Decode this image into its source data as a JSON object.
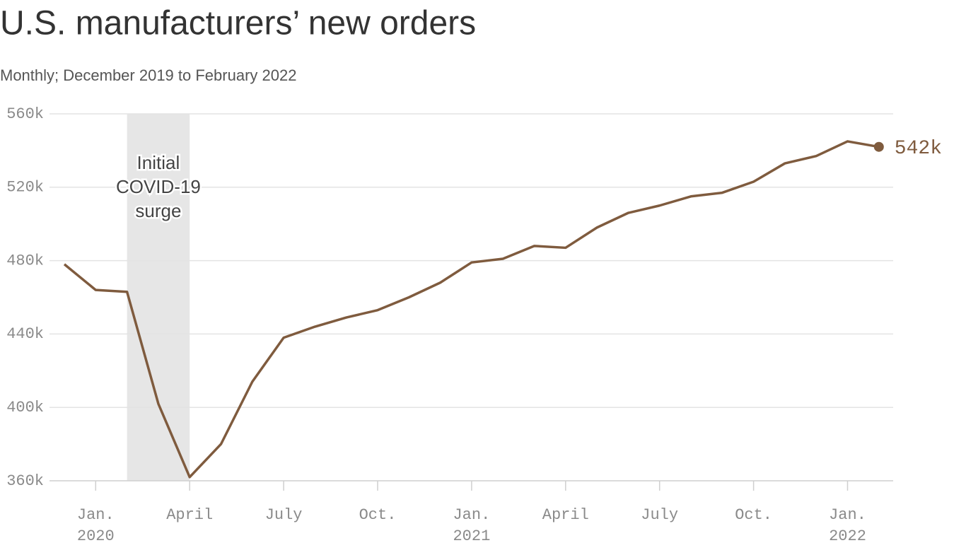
{
  "chart_data": {
    "type": "line",
    "title": "U.S. manufacturers’ new orders",
    "subtitle": "Monthly; December 2019 to February 2022",
    "x": [
      "2019-12",
      "2020-01",
      "2020-02",
      "2020-03",
      "2020-04",
      "2020-05",
      "2020-06",
      "2020-07",
      "2020-08",
      "2020-09",
      "2020-10",
      "2020-11",
      "2020-12",
      "2021-01",
      "2021-02",
      "2021-03",
      "2021-04",
      "2021-05",
      "2021-06",
      "2021-07",
      "2021-08",
      "2021-09",
      "2021-10",
      "2021-11",
      "2021-12",
      "2022-01",
      "2022-02"
    ],
    "series": [
      {
        "name": "New orders",
        "color": "#7f5b3e",
        "values": [
          478,
          464,
          463,
          402,
          362,
          380,
          414,
          438,
          444,
          449,
          453,
          460,
          468,
          479,
          481,
          488,
          487,
          498,
          506,
          510,
          515,
          517,
          523,
          533,
          537,
          545,
          542
        ]
      }
    ],
    "end_label": "542k",
    "ylim": [
      360,
      560
    ],
    "yticks": [
      {
        "value": 360,
        "label": "360k"
      },
      {
        "value": 400,
        "label": "400k"
      },
      {
        "value": 440,
        "label": "440k"
      },
      {
        "value": 480,
        "label": "480k"
      },
      {
        "value": 520,
        "label": "520k"
      },
      {
        "value": 560,
        "label": "560k"
      }
    ],
    "xticks": [
      {
        "value": "2020-01",
        "label": [
          "Jan.",
          "2020"
        ]
      },
      {
        "value": "2020-04",
        "label": [
          "April"
        ]
      },
      {
        "value": "2020-07",
        "label": [
          "July"
        ]
      },
      {
        "value": "2020-10",
        "label": [
          "Oct."
        ]
      },
      {
        "value": "2021-01",
        "label": [
          "Jan.",
          "2021"
        ]
      },
      {
        "value": "2021-04",
        "label": [
          "April"
        ]
      },
      {
        "value": "2021-07",
        "label": [
          "July"
        ]
      },
      {
        "value": "2021-10",
        "label": [
          "Oct."
        ]
      },
      {
        "value": "2022-01",
        "label": [
          "Jan.",
          "2022"
        ]
      }
    ],
    "shade": {
      "start": "2020-02",
      "end": "2020-04",
      "color": "#e6e6e6",
      "label": [
        "Initial",
        "COVID-19",
        "surge"
      ]
    },
    "grid": true
  }
}
